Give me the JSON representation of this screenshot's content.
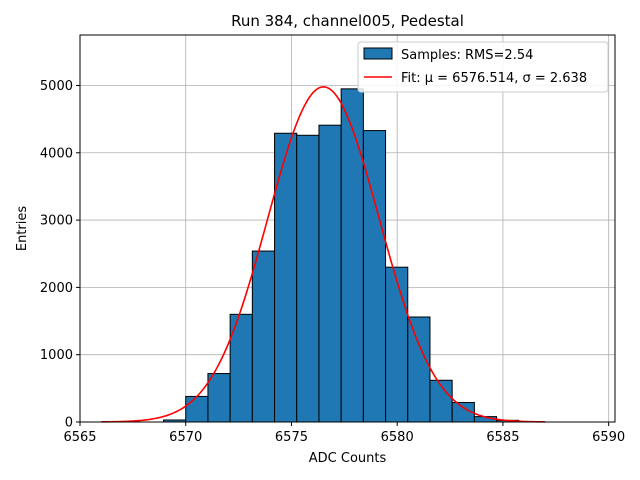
{
  "chart_data": {
    "type": "bar",
    "title": "Run 384, channel005, Pedestal",
    "xlabel": "ADC Counts",
    "ylabel": "Entries",
    "xlim": [
      6565,
      6590.3
    ],
    "ylim": [
      0,
      5750
    ],
    "xticks": [
      "6565",
      "6570",
      "6575",
      "6580",
      "6585",
      "6590"
    ],
    "yticks": [
      "0",
      "1000",
      "2000",
      "3000",
      "4000",
      "5000"
    ],
    "grid": true,
    "legend_position": "top-right",
    "bin_width": 1.05,
    "bins": [
      {
        "left": 6568.95,
        "value": 30
      },
      {
        "left": 6570.0,
        "value": 380
      },
      {
        "left": 6571.05,
        "value": 720
      },
      {
        "left": 6572.1,
        "value": 1600
      },
      {
        "left": 6573.15,
        "value": 2540
      },
      {
        "left": 6574.2,
        "value": 4290
      },
      {
        "left": 6575.25,
        "value": 4260
      },
      {
        "left": 6576.3,
        "value": 4410
      },
      {
        "left": 6577.35,
        "value": 4950
      },
      {
        "left": 6578.4,
        "value": 4330
      },
      {
        "left": 6579.45,
        "value": 2300
      },
      {
        "left": 6580.5,
        "value": 1560
      },
      {
        "left": 6581.55,
        "value": 620
      },
      {
        "left": 6582.6,
        "value": 290
      },
      {
        "left": 6583.65,
        "value": 80
      },
      {
        "left": 6584.7,
        "value": 25
      }
    ],
    "fit": {
      "mu": 6576.514,
      "sigma": 2.638,
      "amplitude": 4980,
      "range": [
        6566,
        6587
      ],
      "color": "#ff0000"
    },
    "bar_color": "#1f77b4",
    "legend": {
      "samples_label": "Samples: RMS=2.54",
      "fit_label": "Fit: μ = 6576.514, σ = 2.638"
    }
  }
}
